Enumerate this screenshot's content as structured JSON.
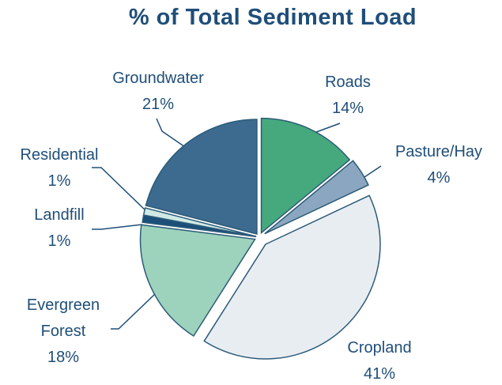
{
  "chart_data": {
    "type": "pie",
    "title": "% of Total Sediment Load",
    "categories": [
      "Roads",
      "Pasture/Hay",
      "Cropland",
      "Evergreen Forest",
      "Landfill",
      "Residential",
      "Groundwater"
    ],
    "values": [
      14,
      4,
      41,
      18,
      1,
      1,
      21
    ],
    "value_labels": [
      "14%",
      "4%",
      "41%",
      "18%",
      "1%",
      "1%",
      "21%"
    ],
    "colors": [
      "#45a97d",
      "#8ba6c0",
      "#e8edf2",
      "#9dd3bc",
      "#1b4f79",
      "#cfe9e4",
      "#3d6a8f"
    ]
  }
}
